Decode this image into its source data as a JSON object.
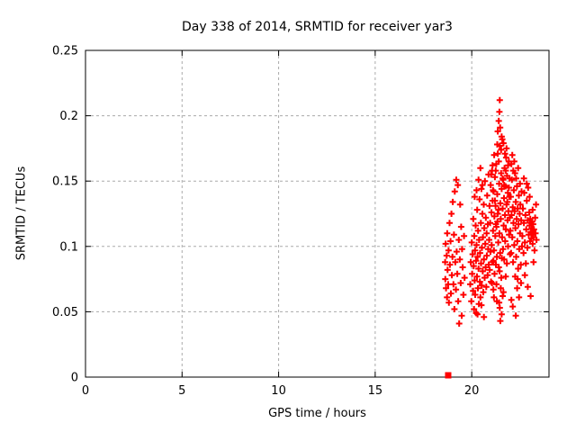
{
  "chart_data": {
    "type": "scatter",
    "title": "Day 338 of 2014, SRMTID for receiver yar3",
    "xlabel": "GPS time / hours",
    "ylabel": "SRMTID / TECUs",
    "xlim": [
      0,
      24
    ],
    "ylim": [
      0,
      0.25
    ],
    "xticks": [
      [
        0,
        "0"
      ],
      [
        5,
        "5"
      ],
      [
        10,
        "10"
      ],
      [
        15,
        "15"
      ],
      [
        20,
        "20"
      ]
    ],
    "yticks": [
      [
        0,
        "0"
      ],
      [
        0.05,
        "0.05"
      ],
      [
        0.1,
        "0.1"
      ],
      [
        0.15,
        "0.15"
      ],
      [
        0.2,
        "0.2"
      ],
      [
        0.25,
        "0.25"
      ]
    ],
    "grid": "dashed",
    "legend": "none",
    "border": "box",
    "marker": "plus",
    "marker_color": "#ff0000",
    "grid_color": "#aaaaaa",
    "axis_color": "#000000",
    "zero_marker": {
      "shape": "filled-square",
      "point": [
        18.78,
        0.0
      ]
    },
    "series": [
      {
        "name": "SRMTID",
        "points": [
          [
            18.62,
            0.088
          ],
          [
            18.63,
            0.075
          ],
          [
            18.65,
            0.102
          ],
          [
            18.67,
            0.068
          ],
          [
            18.7,
            0.093
          ],
          [
            18.72,
            0.061
          ],
          [
            18.73,
            0.11
          ],
          [
            18.75,
            0.082
          ],
          [
            18.78,
            0.071
          ],
          [
            18.8,
            0.097
          ],
          [
            18.82,
            0.057
          ],
          [
            18.85,
            0.118
          ],
          [
            18.87,
            0.086
          ],
          [
            18.9,
            0.104
          ],
          [
            18.92,
            0.064
          ],
          [
            18.95,
            0.125
          ],
          [
            18.97,
            0.078
          ],
          [
            19.0,
            0.092
          ],
          [
            19.02,
            0.134
          ],
          [
            19.05,
            0.071
          ],
          [
            19.08,
            0.109
          ],
          [
            19.1,
            0.052
          ],
          [
            19.12,
            0.142
          ],
          [
            19.15,
            0.088
          ],
          [
            19.18,
            0.067
          ],
          [
            19.2,
            0.151
          ],
          [
            19.22,
            0.096
          ],
          [
            19.25,
            0.079
          ],
          [
            19.28,
            0.147
          ],
          [
            19.3,
            0.058
          ],
          [
            19.33,
            0.105
          ],
          [
            19.35,
            0.041
          ],
          [
            19.38,
            0.09
          ],
          [
            19.4,
            0.132
          ],
          [
            19.43,
            0.072
          ],
          [
            19.45,
            0.115
          ],
          [
            19.48,
            0.047
          ],
          [
            19.5,
            0.098
          ],
          [
            19.53,
            0.084
          ],
          [
            19.57,
            0.063
          ],
          [
            19.6,
            0.108
          ],
          [
            19.63,
            0.076
          ],
          [
            19.92,
            0.071
          ],
          [
            19.95,
            0.088
          ],
          [
            19.98,
            0.058
          ],
          [
            20.0,
            0.103
          ],
          [
            20.02,
            0.079
          ],
          [
            20.05,
            0.094
          ],
          [
            20.07,
            0.066
          ],
          [
            20.08,
            0.121
          ],
          [
            20.1,
            0.085
          ],
          [
            20.12,
            0.052
          ],
          [
            20.13,
            0.108
          ],
          [
            20.15,
            0.074
          ],
          [
            20.17,
            0.097
          ],
          [
            20.18,
            0.063
          ],
          [
            20.2,
            0.116
          ],
          [
            20.22,
            0.089
          ],
          [
            20.23,
            0.049
          ],
          [
            20.25,
            0.101
          ],
          [
            20.27,
            0.077
          ],
          [
            20.28,
            0.128
          ],
          [
            20.3,
            0.092
          ],
          [
            20.32,
            0.068
          ],
          [
            20.33,
            0.112
          ],
          [
            20.35,
            0.083
          ],
          [
            20.37,
            0.056
          ],
          [
            20.38,
            0.105
          ],
          [
            20.4,
            0.136
          ],
          [
            20.42,
            0.073
          ],
          [
            20.43,
            0.095
          ],
          [
            20.45,
            0.061
          ],
          [
            20.47,
            0.118
          ],
          [
            20.48,
            0.087
          ],
          [
            20.5,
            0.144
          ],
          [
            20.52,
            0.07
          ],
          [
            20.53,
            0.099
          ],
          [
            20.55,
            0.125
          ],
          [
            20.57,
            0.081
          ],
          [
            20.58,
            0.107
          ],
          [
            20.6,
            0.065
          ],
          [
            20.62,
            0.132
          ],
          [
            20.63,
            0.09
          ],
          [
            20.65,
            0.114
          ],
          [
            20.67,
            0.076
          ],
          [
            20.68,
            0.15
          ],
          [
            20.7,
            0.102
          ],
          [
            20.72,
            0.084
          ],
          [
            20.73,
            0.122
          ],
          [
            20.75,
            0.069
          ],
          [
            20.77,
            0.11
          ],
          [
            20.78,
            0.093
          ],
          [
            20.8,
            0.139
          ],
          [
            20.82,
            0.078
          ],
          [
            20.83,
            0.117
          ],
          [
            20.85,
            0.098
          ],
          [
            20.87,
            0.155
          ],
          [
            20.88,
            0.086
          ],
          [
            20.63,
            0.046
          ],
          [
            20.5,
            0.055
          ],
          [
            20.35,
            0.151
          ],
          [
            20.25,
            0.143
          ],
          [
            20.15,
            0.138
          ],
          [
            20.45,
            0.16
          ],
          [
            20.55,
            0.147
          ],
          [
            20.3,
            0.048
          ],
          [
            20.9,
            0.105
          ],
          [
            20.92,
            0.131
          ],
          [
            20.93,
            0.082
          ],
          [
            20.95,
            0.118
          ],
          [
            20.97,
            0.096
          ],
          [
            20.98,
            0.147
          ],
          [
            21.0,
            0.073
          ],
          [
            21.02,
            0.126
          ],
          [
            21.03,
            0.101
          ],
          [
            21.05,
            0.158
          ],
          [
            21.07,
            0.088
          ],
          [
            21.08,
            0.135
          ],
          [
            21.1,
            0.112
          ],
          [
            21.12,
            0.067
          ],
          [
            21.13,
            0.142
          ],
          [
            21.15,
            0.097
          ],
          [
            21.17,
            0.123
          ],
          [
            21.18,
            0.079
          ],
          [
            21.2,
            0.153
          ],
          [
            21.22,
            0.108
          ],
          [
            21.23,
            0.131
          ],
          [
            21.25,
            0.086
          ],
          [
            21.27,
            0.163
          ],
          [
            21.28,
            0.115
          ],
          [
            21.3,
            0.092
          ],
          [
            21.32,
            0.14
          ],
          [
            21.33,
            0.119
          ],
          [
            21.35,
            0.171
          ],
          [
            21.37,
            0.103
          ],
          [
            21.38,
            0.128
          ],
          [
            21.4,
            0.084
          ],
          [
            21.42,
            0.148
          ],
          [
            21.43,
            0.11
          ],
          [
            21.45,
            0.177
          ],
          [
            21.47,
            0.095
          ],
          [
            21.48,
            0.133
          ],
          [
            21.5,
            0.121
          ],
          [
            21.52,
            0.156
          ],
          [
            21.53,
            0.076
          ],
          [
            21.55,
            0.144
          ],
          [
            21.57,
            0.107
          ],
          [
            21.58,
            0.182
          ],
          [
            21.6,
            0.129
          ],
          [
            21.62,
            0.098
          ],
          [
            21.63,
            0.151
          ],
          [
            21.65,
            0.116
          ],
          [
            21.67,
            0.137
          ],
          [
            21.68,
            0.09
          ],
          [
            21.7,
            0.16
          ],
          [
            21.72,
            0.124
          ],
          [
            21.73,
            0.104
          ],
          [
            21.75,
            0.146
          ],
          [
            21.77,
            0.113
          ],
          [
            21.78,
            0.168
          ],
          [
            21.8,
            0.132
          ],
          [
            21.82,
            0.087
          ],
          [
            21.83,
            0.154
          ],
          [
            21.85,
            0.12
          ],
          [
            21.87,
            0.141
          ],
          [
            21.88,
            0.1
          ],
          [
            21.9,
            0.127
          ],
          [
            21.92,
            0.165
          ],
          [
            21.93,
            0.109
          ],
          [
            21.95,
            0.138
          ],
          [
            21.97,
            0.122
          ],
          [
            21.98,
            0.094
          ],
          [
            21.05,
            0.072
          ],
          [
            21.1,
            0.143
          ],
          [
            21.15,
            0.061
          ],
          [
            21.2,
            0.135
          ],
          [
            21.25,
            0.117
          ],
          [
            21.3,
            0.058
          ],
          [
            21.35,
            0.125
          ],
          [
            21.4,
            0.165
          ],
          [
            21.45,
            0.053
          ],
          [
            21.5,
            0.068
          ],
          [
            21.55,
            0.048
          ],
          [
            21.6,
            0.062
          ],
          [
            21.42,
            0.057
          ],
          [
            21.48,
            0.043
          ],
          [
            21.35,
            0.188
          ],
          [
            21.4,
            0.196
          ],
          [
            21.43,
            0.203
          ],
          [
            21.45,
            0.212
          ],
          [
            21.47,
            0.191
          ],
          [
            21.55,
            0.184
          ],
          [
            21.0,
            0.155
          ],
          [
            21.08,
            0.162
          ],
          [
            21.16,
            0.17
          ],
          [
            21.24,
            0.158
          ],
          [
            21.32,
            0.178
          ],
          [
            21.52,
            0.174
          ],
          [
            21.64,
            0.179
          ],
          [
            21.72,
            0.171
          ],
          [
            21.8,
            0.175
          ],
          [
            21.88,
            0.162
          ],
          [
            21.6,
            0.152
          ],
          [
            21.68,
            0.147
          ],
          [
            21.76,
            0.158
          ],
          [
            21.84,
            0.134
          ],
          [
            21.92,
            0.145
          ],
          [
            21.96,
            0.152
          ],
          [
            21.12,
            0.089
          ],
          [
            21.28,
            0.071
          ],
          [
            21.44,
            0.081
          ],
          [
            21.56,
            0.091
          ],
          [
            21.64,
            0.065
          ],
          [
            21.76,
            0.077
          ],
          [
            22.0,
            0.112
          ],
          [
            22.02,
            0.138
          ],
          [
            22.04,
            0.095
          ],
          [
            22.06,
            0.124
          ],
          [
            22.08,
            0.151
          ],
          [
            22.1,
            0.107
          ],
          [
            22.12,
            0.13
          ],
          [
            22.14,
            0.088
          ],
          [
            22.16,
            0.118
          ],
          [
            22.18,
            0.143
          ],
          [
            22.2,
            0.101
          ],
          [
            22.22,
            0.127
          ],
          [
            22.24,
            0.156
          ],
          [
            22.26,
            0.114
          ],
          [
            22.28,
            0.134
          ],
          [
            22.3,
            0.092
          ],
          [
            22.32,
            0.121
          ],
          [
            22.34,
            0.146
          ],
          [
            22.36,
            0.104
          ],
          [
            22.38,
            0.129
          ],
          [
            22.4,
            0.083
          ],
          [
            22.42,
            0.117
          ],
          [
            22.44,
            0.139
          ],
          [
            22.46,
            0.098
          ],
          [
            22.48,
            0.125
          ],
          [
            22.5,
            0.11
          ],
          [
            22.52,
            0.132
          ],
          [
            22.54,
            0.086
          ],
          [
            22.56,
            0.12
          ],
          [
            22.58,
            0.142
          ],
          [
            22.6,
            0.1
          ],
          [
            22.05,
            0.163
          ],
          [
            22.15,
            0.158
          ],
          [
            22.25,
            0.077
          ],
          [
            22.35,
            0.068
          ],
          [
            22.45,
            0.061
          ],
          [
            22.55,
            0.072
          ],
          [
            22.1,
            0.17
          ],
          [
            22.2,
            0.165
          ],
          [
            22.3,
            0.152
          ],
          [
            22.4,
            0.16
          ],
          [
            22.5,
            0.148
          ],
          [
            22.05,
            0.059
          ],
          [
            22.12,
            0.054
          ],
          [
            22.28,
            0.047
          ],
          [
            22.38,
            0.075
          ],
          [
            22.62,
            0.108
          ],
          [
            22.65,
            0.129
          ],
          [
            22.68,
            0.095
          ],
          [
            22.7,
            0.118
          ],
          [
            22.72,
            0.141
          ],
          [
            22.75,
            0.103
          ],
          [
            22.78,
            0.124
          ],
          [
            22.8,
            0.087
          ],
          [
            22.82,
            0.113
          ],
          [
            22.85,
            0.135
          ],
          [
            22.88,
            0.099
          ],
          [
            22.9,
            0.12
          ],
          [
            22.92,
            0.145
          ],
          [
            22.95,
            0.109
          ],
          [
            22.98,
            0.126
          ],
          [
            23.0,
            0.116
          ],
          [
            23.02,
            0.104
          ],
          [
            23.03,
            0.121
          ],
          [
            23.05,
            0.111
          ],
          [
            23.07,
            0.118
          ],
          [
            23.08,
            0.106
          ],
          [
            23.1,
            0.114
          ],
          [
            23.12,
            0.109
          ],
          [
            23.13,
            0.119
          ],
          [
            23.15,
            0.102
          ],
          [
            23.17,
            0.112
          ],
          [
            23.18,
            0.117
          ],
          [
            23.2,
            0.107
          ],
          [
            23.22,
            0.113
          ],
          [
            23.25,
            0.097
          ],
          [
            23.28,
            0.122
          ],
          [
            23.3,
            0.11
          ],
          [
            23.33,
            0.132
          ],
          [
            23.35,
            0.105
          ],
          [
            22.7,
            0.152
          ],
          [
            22.85,
            0.148
          ],
          [
            23.0,
            0.138
          ],
          [
            23.15,
            0.128
          ],
          [
            22.75,
            0.078
          ],
          [
            22.9,
            0.069
          ],
          [
            23.05,
            0.062
          ],
          [
            23.2,
            0.088
          ]
        ]
      }
    ]
  }
}
